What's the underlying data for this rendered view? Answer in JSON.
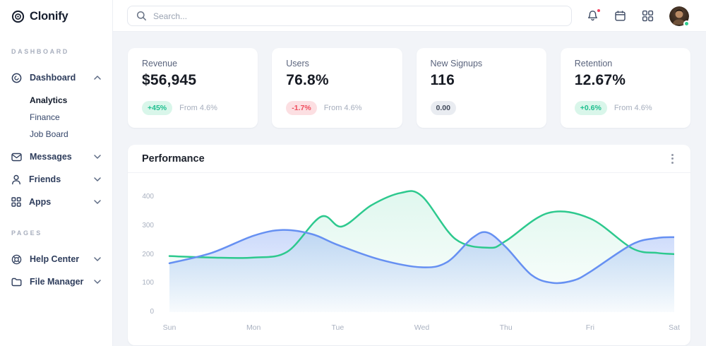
{
  "app": {
    "name": "Clonify"
  },
  "topbar": {
    "search_placeholder": "Search..."
  },
  "sidebar": {
    "sections": [
      {
        "label": "DASHBOARD"
      },
      {
        "label": "PAGES"
      }
    ],
    "items": {
      "dashboard": "Dashboard",
      "analytics": "Analytics",
      "finance": "Finance",
      "job_board": "Job Board",
      "messages": "Messages",
      "friends": "Friends",
      "apps": "Apps",
      "help_center": "Help Center",
      "file_manager": "File Manager"
    }
  },
  "stats": {
    "cards": [
      {
        "label": "Revenue",
        "value": "$56,945",
        "badge": "+45%",
        "badge_type": "positive",
        "note": "From 4.6%"
      },
      {
        "label": "Users",
        "value": "76.8%",
        "badge": "-1.7%",
        "badge_type": "negative",
        "note": "From 4.6%"
      },
      {
        "label": "New Signups",
        "value": "116",
        "badge": "0.00",
        "badge_type": "neutral",
        "note": ""
      },
      {
        "label": "Retention",
        "value": "12.67%",
        "badge": "+0.6%",
        "badge_type": "positive",
        "note": "From 4.6%"
      }
    ]
  },
  "performance": {
    "title": "Performance"
  },
  "colors": {
    "green_line": "#2dc98e",
    "blue_line": "#6690f2",
    "positive_badge": "#1fbf8f",
    "negative_badge": "#ef4c5c",
    "background": "#f2f4f8"
  },
  "chart_data": {
    "type": "area",
    "title": "Performance",
    "categories": [
      "Sun",
      "Mon",
      "Tue",
      "Wed",
      "Thu",
      "Fri",
      "Sat"
    ],
    "xlabel": "",
    "ylabel": "",
    "ylim": [
      0,
      440
    ],
    "yticks": [
      0,
      100,
      200,
      300,
      400
    ],
    "grid": false,
    "legend": "none",
    "series": [
      {
        "name": "green",
        "color": "#2dc98e",
        "fill_from": "rgba(45,201,142,0.15)",
        "fill_to": "rgba(45,201,142,0.01)",
        "points": [
          [
            0,
            195
          ],
          [
            0.5,
            190
          ],
          [
            1,
            190
          ],
          [
            1.4,
            210
          ],
          [
            1.8,
            332
          ],
          [
            2.05,
            298
          ],
          [
            2.4,
            372
          ],
          [
            2.75,
            415
          ],
          [
            3,
            404
          ],
          [
            3.4,
            254
          ],
          [
            3.8,
            224
          ],
          [
            4,
            248
          ],
          [
            4.5,
            345
          ],
          [
            5,
            326
          ],
          [
            5.5,
            222
          ],
          [
            5.8,
            206
          ],
          [
            6,
            202
          ]
        ]
      },
      {
        "name": "blue",
        "color": "#6690f2",
        "fill_from": "rgba(102,144,242,0.34)",
        "fill_to": "rgba(102,144,242,0.03)",
        "points": [
          [
            0,
            170
          ],
          [
            0.5,
            206
          ],
          [
            1,
            266
          ],
          [
            1.35,
            286
          ],
          [
            1.7,
            271
          ],
          [
            2,
            234
          ],
          [
            2.5,
            183
          ],
          [
            3,
            156
          ],
          [
            3.3,
            174
          ],
          [
            3.6,
            258
          ],
          [
            3.78,
            277
          ],
          [
            4,
            226
          ],
          [
            4.3,
            130
          ],
          [
            4.55,
            102
          ],
          [
            4.8,
            110
          ],
          [
            5,
            140
          ],
          [
            5.5,
            236
          ],
          [
            5.8,
            258
          ],
          [
            6,
            261
          ]
        ]
      }
    ]
  }
}
